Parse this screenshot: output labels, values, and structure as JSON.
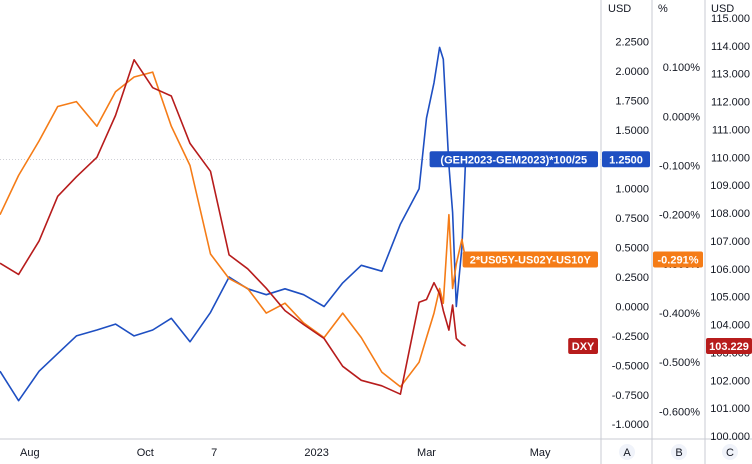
{
  "chart_data": {
    "type": "line",
    "title": "",
    "x_tick_labels": [
      "Aug",
      "Oct",
      "7",
      "2023",
      "Mar",
      "May"
    ],
    "axes": [
      {
        "id": "A",
        "unit": "USD",
        "min": -1.1,
        "max": 2.45,
        "ticks": [
          "2.2500",
          "2.0000",
          "1.7500",
          "1.5000",
          "1.2500",
          "1.0000",
          "0.7500",
          "0.5000",
          "0.2500",
          "0.0000",
          "-0.2500",
          "-0.5000",
          "-0.7500",
          "-1.0000"
        ]
      },
      {
        "id": "B",
        "unit": "%",
        "min": -0.65,
        "max": 0.2,
        "ticks": [
          "0.100%",
          "0.000%",
          "-0.100%",
          "-0.200%",
          "-0.300%",
          "-0.400%",
          "-0.500%",
          "-0.600%"
        ]
      },
      {
        "id": "C",
        "unit": "USD",
        "min": 100.0,
        "max": 115.0,
        "ticks": [
          "115.000",
          "114.000",
          "113.000",
          "112.000",
          "111.000",
          "110.000",
          "109.000",
          "108.000",
          "107.000",
          "106.000",
          "105.000",
          "104.000",
          "103.000",
          "102.000",
          "101.000",
          "100.000"
        ]
      }
    ],
    "series": [
      {
        "name": "(GEH2023-GEM2023)*100/25",
        "axis": "A",
        "color": "#1e4fc2",
        "last_value": "1.2500",
        "x": [
          "2022-07-15",
          "2022-07-25",
          "2022-08-05",
          "2022-08-15",
          "2022-08-25",
          "2022-09-05",
          "2022-09-15",
          "2022-09-25",
          "2022-10-05",
          "2022-10-15",
          "2022-10-25",
          "2022-11-05",
          "2022-11-15",
          "2022-11-25",
          "2022-12-05",
          "2022-12-15",
          "2022-12-25",
          "2023-01-05",
          "2023-01-15",
          "2023-01-25",
          "2023-02-05",
          "2023-02-15",
          "2023-02-25",
          "2023-03-01",
          "2023-03-05",
          "2023-03-08",
          "2023-03-10",
          "2023-03-13",
          "2023-03-15",
          "2023-03-17",
          "2023-03-20",
          "2023-03-22"
        ],
        "values": [
          -0.55,
          -0.8,
          -0.55,
          -0.4,
          -0.25,
          -0.2,
          -0.15,
          -0.25,
          -0.2,
          -0.1,
          -0.3,
          -0.05,
          0.25,
          0.15,
          0.1,
          0.15,
          0.1,
          0.0,
          0.2,
          0.35,
          0.3,
          0.7,
          1.0,
          1.6,
          1.9,
          2.2,
          2.1,
          1.2,
          0.8,
          0.0,
          0.5,
          1.25
        ]
      },
      {
        "name": "2*US05Y-US02Y-US10Y",
        "axis": "B",
        "color": "#f57c17",
        "last_value": "-0.291%",
        "x": [
          "2022-07-15",
          "2022-07-25",
          "2022-08-05",
          "2022-08-15",
          "2022-08-25",
          "2022-09-05",
          "2022-09-15",
          "2022-09-25",
          "2022-10-05",
          "2022-10-15",
          "2022-10-25",
          "2022-11-05",
          "2022-11-15",
          "2022-11-25",
          "2022-12-05",
          "2022-12-15",
          "2022-12-25",
          "2023-01-05",
          "2023-01-15",
          "2023-01-25",
          "2023-02-05",
          "2023-02-15",
          "2023-02-25",
          "2023-03-01",
          "2023-03-05",
          "2023-03-08",
          "2023-03-10",
          "2023-03-13",
          "2023-03-15",
          "2023-03-17",
          "2023-03-20",
          "2023-03-22"
        ],
        "values": [
          -0.2,
          -0.12,
          -0.05,
          0.02,
          0.03,
          -0.02,
          0.05,
          0.08,
          0.09,
          -0.02,
          -0.1,
          -0.28,
          -0.33,
          -0.35,
          -0.4,
          -0.38,
          -0.42,
          -0.45,
          -0.4,
          -0.45,
          -0.52,
          -0.55,
          -0.5,
          -0.45,
          -0.4,
          -0.35,
          -0.38,
          -0.2,
          -0.35,
          -0.3,
          -0.25,
          -0.291
        ]
      },
      {
        "name": "DXY",
        "axis": "C",
        "color": "#b71c1c",
        "last_value": "103.229",
        "x": [
          "2022-07-15",
          "2022-07-25",
          "2022-08-05",
          "2022-08-15",
          "2022-08-25",
          "2022-09-05",
          "2022-09-15",
          "2022-09-25",
          "2022-10-05",
          "2022-10-15",
          "2022-10-25",
          "2022-11-05",
          "2022-11-15",
          "2022-11-25",
          "2022-12-05",
          "2022-12-15",
          "2022-12-25",
          "2023-01-05",
          "2023-01-15",
          "2023-01-25",
          "2023-02-05",
          "2023-02-15",
          "2023-02-25",
          "2023-03-01",
          "2023-03-05",
          "2023-03-08",
          "2023-03-10",
          "2023-03-13",
          "2023-03-15",
          "2023-03-17",
          "2023-03-20",
          "2023-03-22"
        ],
        "values": [
          106.2,
          105.8,
          107.0,
          108.6,
          109.3,
          110.0,
          111.5,
          113.5,
          112.5,
          112.2,
          110.5,
          109.5,
          106.5,
          106.0,
          105.3,
          104.5,
          104.0,
          103.5,
          102.5,
          102.0,
          101.8,
          101.5,
          104.8,
          104.9,
          105.5,
          105.1,
          104.5,
          103.8,
          104.7,
          103.5,
          103.3,
          103.229
        ]
      }
    ],
    "grid": false,
    "legend": "none"
  }
}
